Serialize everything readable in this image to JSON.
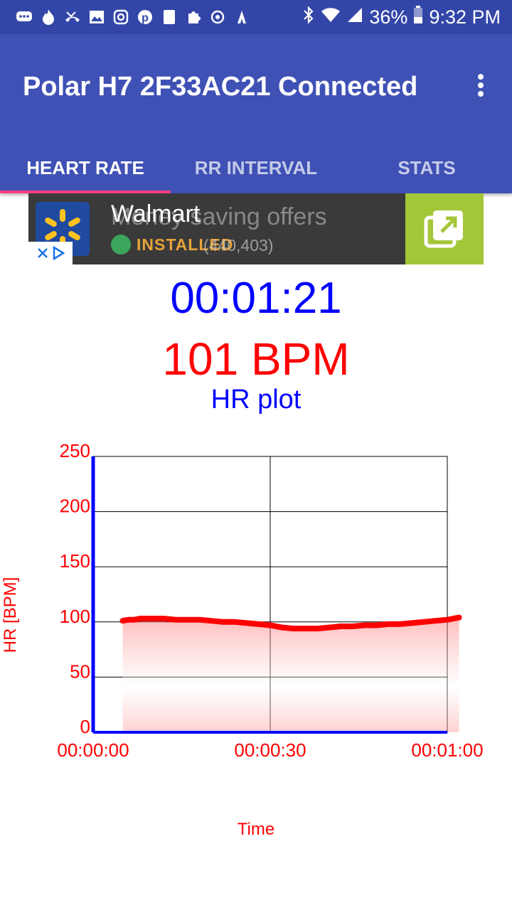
{
  "status_bar": {
    "battery": "36%",
    "time": "9:32 PM",
    "left_icons": [
      "messages-icon",
      "tinder-icon",
      "missed-call-icon",
      "gallery-icon",
      "instagram-icon",
      "pinterest-icon",
      "clipboard-icon",
      "puzzle-icon",
      "sync-icon",
      "activity-icon"
    ],
    "right_icons": [
      "bluetooth-icon",
      "wifi-icon",
      "signal-icon",
      "battery-icon"
    ]
  },
  "app_bar": {
    "title": "Polar H7 2F33AC21 Connected"
  },
  "tabs": [
    {
      "label": "HEART RATE",
      "active": true
    },
    {
      "label": "RR INTERVAL",
      "active": false
    },
    {
      "label": "STATS",
      "active": false
    }
  ],
  "ad": {
    "advertiser": "Walmart",
    "headline": "Money saving offers",
    "installed_label": "INSTALLED",
    "rating_count": "(440,403)",
    "brand_color": "#1f4aa0",
    "cta_color": "#a4c639"
  },
  "session": {
    "elapsed": "00:01:21",
    "heart_rate": "101 BPM"
  },
  "chart_data": {
    "type": "area",
    "title": "HR plot",
    "xlabel": "Time",
    "ylabel": "HR [BPM]",
    "ylim": [
      0,
      250
    ],
    "yticks": [
      "250",
      "200",
      "150",
      "100",
      "50",
      "0"
    ],
    "xticks": [
      "00:00:00",
      "00:00:30",
      "00:01:00"
    ],
    "xlim_seconds": [
      0,
      60
    ],
    "grid": true,
    "series": [
      {
        "line_color": "#ff0000",
        "x": [
          5,
          6,
          7,
          8,
          10,
          12,
          14,
          16,
          18,
          20,
          22,
          24,
          26,
          28,
          30,
          32,
          34,
          36,
          38,
          40,
          42,
          44,
          46,
          48,
          50,
          52,
          54,
          56,
          58,
          60,
          62
        ],
        "y": [
          101,
          102,
          102,
          103,
          103,
          103,
          102,
          102,
          102,
          101,
          100,
          100,
          99,
          98,
          97,
          95,
          94,
          94,
          94,
          95,
          96,
          96,
          97,
          97,
          98,
          98,
          99,
          100,
          101,
          102,
          104
        ]
      }
    ]
  }
}
